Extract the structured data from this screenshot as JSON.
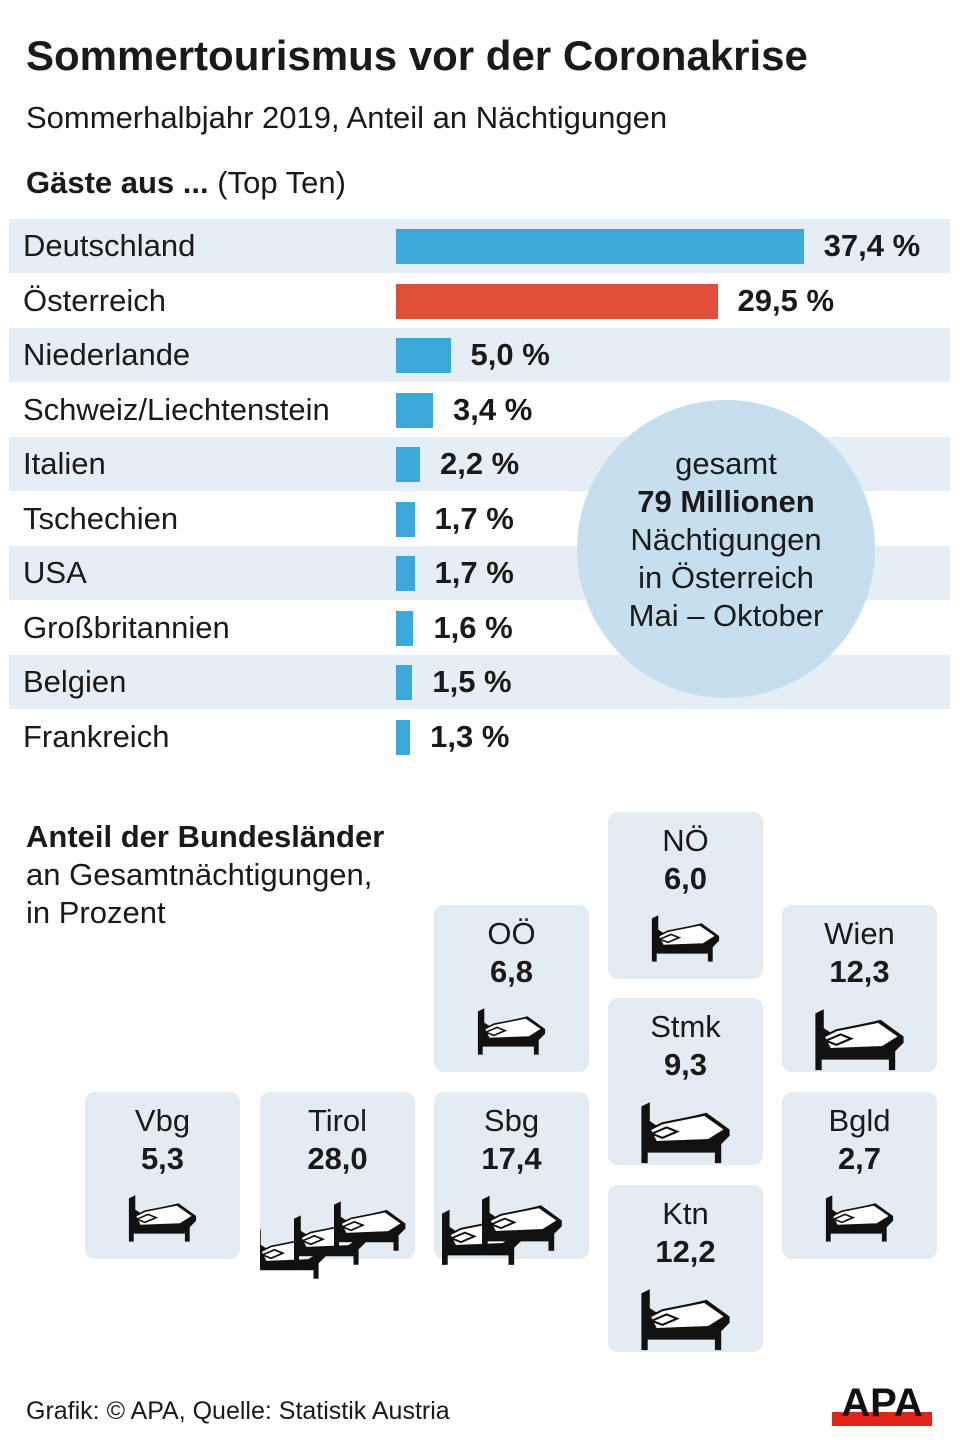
{
  "title": "Sommertourismus vor der Coronakrise",
  "subtitle": "Sommerhalbjahr 2019, Anteil an Nächtigungen",
  "section1": {
    "bold": "Gäste aus ...",
    "normal": "(Top Ten)"
  },
  "colors": {
    "bar": "#3aa8d8",
    "highlight": "#e04e39",
    "row_alt": "#e6eef5",
    "circle": "#c5dfee",
    "tile": "#e3ecf3"
  },
  "chart_data": [
    {
      "type": "bar",
      "orientation": "horizontal",
      "unit": "%",
      "categories": [
        "Deutschland",
        "Österreich",
        "Niederlande",
        "Schweiz/Liechtenstein",
        "Italien",
        "Tschechien",
        "USA",
        "Großbritannien",
        "Belgien",
        "Frankreich"
      ],
      "values": [
        37.4,
        29.5,
        5.0,
        3.4,
        2.2,
        1.7,
        1.7,
        1.6,
        1.5,
        1.3
      ],
      "labels": [
        "37,4 %",
        "29,5 %",
        "5,0 %",
        "3,4 %",
        "2,2 %",
        "1,7 %",
        "1,7 %",
        "1,6 %",
        "1,5 %",
        "1,3 %"
      ],
      "highlight": "Österreich"
    },
    {
      "type": "table",
      "title": "Anteil der Bundesländer",
      "subtitle_lines": [
        "an Gesamtnächtigungen,",
        "in Prozent"
      ],
      "categories": [
        "NÖ",
        "OÖ",
        "Wien",
        "Stmk",
        "Vbg",
        "Tirol",
        "Sbg",
        "Bgld",
        "Ktn"
      ],
      "values": [
        6.0,
        6.8,
        12.3,
        9.3,
        5.3,
        28.0,
        17.4,
        2.7,
        12.2
      ],
      "labels": [
        "6,0",
        "6,8",
        "12,3",
        "9,3",
        "5,3",
        "28,0",
        "17,4",
        "2,7",
        "12,2"
      ],
      "icon": "bed-icon"
    }
  ],
  "circle": {
    "line1": "gesamt",
    "line2": "79 Millionen",
    "line3": "Nächtigungen",
    "line4": "in Österreich",
    "line5": "Mai – Oktober"
  },
  "footer": "Grafik: © APA, Quelle: Statistik Austria",
  "logo": "APA"
}
